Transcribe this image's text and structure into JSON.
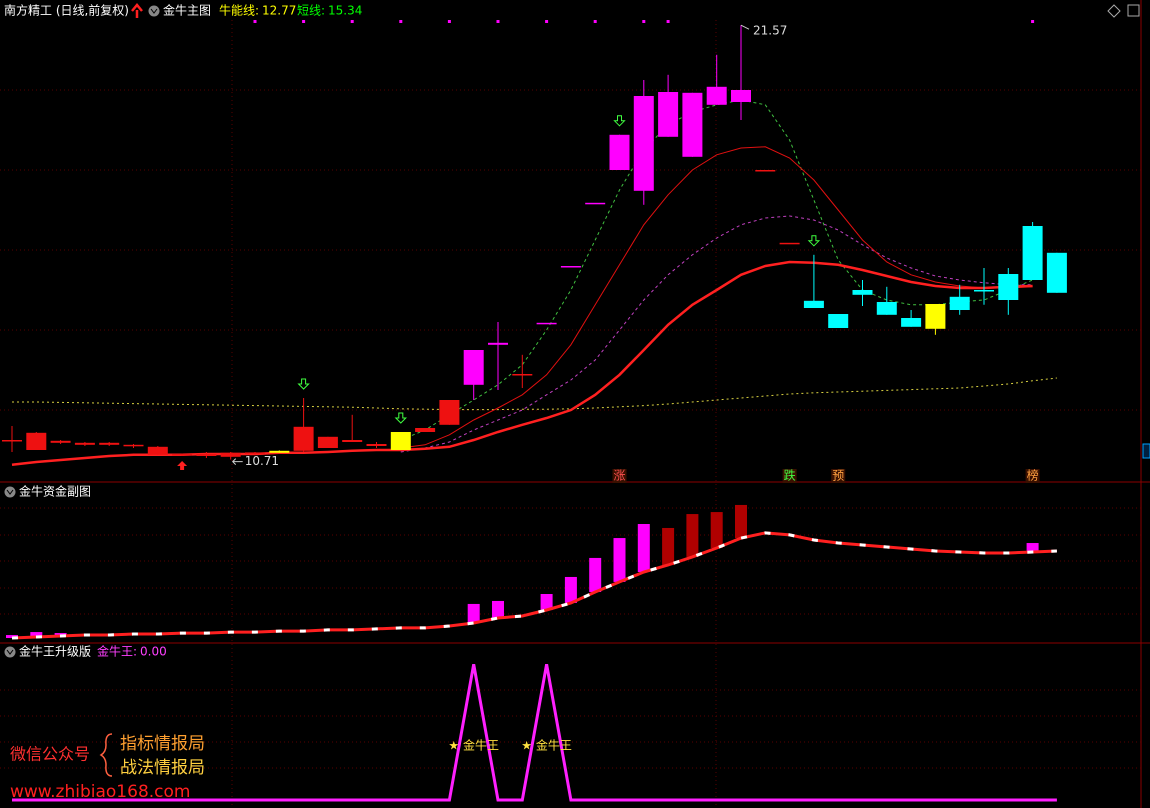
{
  "chart_data": [
    {
      "type": "candlestick",
      "title": "南方精工 (日线,前复权)",
      "subtitle": "金牛主图",
      "indicators": [
        {
          "name": "牛能线:",
          "value": 12.77,
          "color": "#ffff00"
        },
        {
          "name": "短线:",
          "value": 15.34,
          "color": "#00ff00"
        }
      ],
      "ylim": [
        10.2,
        22.2
      ],
      "candles": {
        "open": [
          11.2,
          10.95,
          11.13,
          11.08,
          11.08,
          11.05,
          10.83,
          10.82,
          10.8,
          10.78,
          10.86,
          10.88,
          10.93,
          11.0,
          11.15,
          11.05,
          10.95,
          11.4,
          11.58,
          12.58,
          13.58,
          12.85,
          14.13,
          15.55,
          17.13,
          17.95,
          17.43,
          18.78,
          18.28,
          19.58,
          19.65,
          17.95,
          16.13,
          14.68,
          14.35,
          14.95,
          14.65,
          14.25,
          13.98,
          14.78,
          14.95,
          15.35,
          16.55,
          15.88
        ],
        "high": [
          11.55,
          11.4,
          11.2,
          11.15,
          11.15,
          11.1,
          11.05,
          10.86,
          10.9,
          10.9,
          10.9,
          10.94,
          12.25,
          11.28,
          11.83,
          11.15,
          11.4,
          11.5,
          12.2,
          13.45,
          14.15,
          13.33,
          14.13,
          15.55,
          17.13,
          18.83,
          20.2,
          20.33,
          19.88,
          20.83,
          21.57,
          17.95,
          16.13,
          15.83,
          14.35,
          15.2,
          15.03,
          14.45,
          14.6,
          15.08,
          15.5,
          15.5,
          16.65,
          15.88
        ],
        "low": [
          10.9,
          10.95,
          11.1,
          11.05,
          11.05,
          11.0,
          10.83,
          10.8,
          10.75,
          10.71,
          10.84,
          10.88,
          10.9,
          11.0,
          11.15,
          11.0,
          10.95,
          11.4,
          11.58,
          12.2,
          12.45,
          12.5,
          14.13,
          15.55,
          17.13,
          17.95,
          17.08,
          18.78,
          18.28,
          19.58,
          19.2,
          17.95,
          16.13,
          14.5,
          14.0,
          14.55,
          14.33,
          14.03,
          13.83,
          14.33,
          14.58,
          14.33,
          15.2,
          14.88
        ],
        "close": [
          11.2,
          11.38,
          11.18,
          11.13,
          11.13,
          11.08,
          11.03,
          10.85,
          10.85,
          10.88,
          10.89,
          10.93,
          11.53,
          11.28,
          11.2,
          11.1,
          11.4,
          11.5,
          12.2,
          13.45,
          13.63,
          12.85,
          14.13,
          15.55,
          17.13,
          18.83,
          19.8,
          19.9,
          19.88,
          20.03,
          19.95,
          17.95,
          16.13,
          14.5,
          14.0,
          14.83,
          14.33,
          14.03,
          14.6,
          14.45,
          14.95,
          14.7,
          15.2,
          14.88
        ],
        "colors": [
          "#ee1111",
          "#ee1111",
          "#ee1111",
          "#ee1111",
          "#ee1111",
          "#ee1111",
          "#ee1111",
          "#ee1111",
          "#ee1111",
          "#ee1111",
          "#ee1111",
          "#ffff00",
          "#ee1111",
          "#ee1111",
          "#ee1111",
          "#ee1111",
          "#ffff00",
          "#ee1111",
          "#ee1111",
          "#ff00ff",
          "#ff00ff",
          "#ee1111",
          "#ff00ff",
          "#ff00ff",
          "#ff00ff",
          "#ff00ff",
          "#ff00ff",
          "#ff00ff",
          "#ff00ff",
          "#ff00ff",
          "#ff00ff",
          "#ee1111",
          "#ee1111",
          "#00ffff",
          "#00ffff",
          "#00ffff",
          "#00ffff",
          "#00ffff",
          "#ffff00",
          "#00ffff",
          "#00ffff",
          "#00ffff",
          "#00ffff",
          "#00ffff"
        ]
      },
      "series": [
        {
          "color": "#d8d040",
          "style": "dotted",
          "width": 1,
          "values": [
            12.15,
            12.15,
            12.14,
            12.13,
            12.12,
            12.11,
            12.1,
            12.09,
            12.08,
            12.07,
            12.06,
            12.05,
            12.04,
            12.03,
            12.02,
            12.0,
            11.98,
            11.97,
            11.96,
            11.96,
            11.96,
            11.97,
            11.97,
            11.98,
            12.0,
            12.03,
            12.06,
            12.1,
            12.15,
            12.2,
            12.25,
            12.3,
            12.35,
            12.38,
            12.4,
            12.42,
            12.44,
            12.46,
            12.48,
            12.5,
            12.55,
            12.6,
            12.68,
            12.75
          ]
        },
        {
          "color": "#40c040",
          "style": "dashed",
          "width": 1,
          "values": [
            null,
            null,
            null,
            null,
            null,
            null,
            null,
            null,
            null,
            null,
            null,
            null,
            null,
            null,
            null,
            null,
            11.2,
            11.45,
            11.83,
            12.2,
            12.58,
            13.08,
            13.95,
            14.95,
            16.2,
            17.45,
            18.45,
            19.08,
            19.4,
            19.58,
            19.7,
            19.58,
            18.7,
            17.2,
            15.7,
            14.95,
            14.7,
            14.58,
            14.58,
            14.65,
            14.7,
            14.95,
            15.2,
            null
          ]
        },
        {
          "color": "#c040c0",
          "style": "dashed",
          "width": 1,
          "values": [
            null,
            null,
            null,
            null,
            null,
            null,
            null,
            null,
            null,
            null,
            null,
            null,
            null,
            null,
            null,
            null,
            10.9,
            11.0,
            11.15,
            11.45,
            11.7,
            11.95,
            12.33,
            12.7,
            13.2,
            13.95,
            14.7,
            15.33,
            15.83,
            16.25,
            16.58,
            16.75,
            16.8,
            16.7,
            16.45,
            16.08,
            15.75,
            15.5,
            15.3,
            15.2,
            15.13,
            15.08,
            15.08,
            null
          ]
        },
        {
          "color": "#e01010",
          "style": "solid",
          "width": 1,
          "values": [
            null,
            null,
            null,
            null,
            null,
            null,
            null,
            null,
            null,
            null,
            null,
            null,
            null,
            null,
            null,
            null,
            11.0,
            11.08,
            11.33,
            11.7,
            12.0,
            12.33,
            12.83,
            13.58,
            14.58,
            15.58,
            16.58,
            17.33,
            17.95,
            18.33,
            18.5,
            18.53,
            18.25,
            17.7,
            16.95,
            16.2,
            15.65,
            15.33,
            15.15,
            15.05,
            15.0,
            15.0,
            15.03,
            null
          ]
        },
        {
          "color": "#ff2020",
          "style": "solid",
          "width": 2.5,
          "values": [
            10.58,
            10.65,
            10.7,
            10.75,
            10.8,
            10.83,
            10.83,
            10.83,
            10.85,
            10.85,
            10.85,
            10.88,
            10.88,
            10.9,
            10.93,
            10.95,
            10.95,
            10.98,
            11.03,
            11.2,
            11.4,
            11.58,
            11.75,
            11.95,
            12.33,
            12.83,
            13.45,
            14.08,
            14.58,
            14.95,
            15.33,
            15.55,
            15.65,
            15.63,
            15.58,
            15.45,
            15.3,
            15.15,
            15.05,
            15.0,
            15.0,
            15.03,
            15.05,
            null
          ]
        }
      ],
      "annotations": {
        "high": 21.57,
        "low": 10.71
      },
      "signals": [
        {
          "label": "涨",
          "color": "#ff5050"
        },
        {
          "label": "跌",
          "color": "#40ff40"
        },
        {
          "label": "预",
          "color": "#ffa040"
        },
        {
          "label": "榜",
          "color": "#ffa040"
        }
      ]
    },
    {
      "type": "bar",
      "title": "金牛资金副图",
      "ylim": [
        0,
        100
      ],
      "values": [
        4.9,
        7.0,
        6.3,
        null,
        null,
        null,
        null,
        null,
        null,
        null,
        null,
        null,
        null,
        null,
        null,
        null,
        null,
        null,
        null,
        26.8,
        28.9,
        null,
        33.8,
        45.8,
        59.2,
        73.2,
        83.1,
        80.3,
        90.1,
        91.5,
        96.5,
        null,
        null,
        null,
        null,
        null,
        null,
        null,
        null,
        null,
        null,
        null,
        69.7,
        null
      ],
      "colors": [
        "#ff00ff",
        "#ff00ff",
        "#ff00ff",
        null,
        null,
        null,
        null,
        null,
        null,
        null,
        null,
        null,
        null,
        null,
        null,
        null,
        null,
        null,
        null,
        "#ff00ff",
        "#ff00ff",
        null,
        "#ff00ff",
        "#ff00ff",
        "#ff00ff",
        "#ff00ff",
        "#ff00ff",
        "#b00000",
        "#b00000",
        "#b00000",
        "#b00000",
        null,
        null,
        null,
        null,
        null,
        null,
        null,
        null,
        null,
        null,
        null,
        "#ff00ff",
        null
      ],
      "line": {
        "color": "#ff2020",
        "values": [
          2.8,
          3.5,
          4.2,
          4.9,
          4.9,
          5.6,
          5.6,
          6.3,
          6.3,
          7.0,
          7.0,
          7.7,
          7.7,
          8.5,
          8.5,
          9.2,
          9.9,
          9.9,
          11.3,
          13.4,
          16.9,
          18.3,
          22.5,
          27.5,
          35.2,
          42.3,
          49.3,
          54.2,
          59.9,
          66.2,
          73.2,
          76.8,
          75.4,
          71.8,
          69.7,
          68.3,
          66.9,
          65.5,
          64.1,
          63.4,
          62.7,
          62.7,
          63.4,
          64.1
        ]
      }
    },
    {
      "type": "line",
      "title": "金牛王升级版",
      "indicators": [
        {
          "name": "金牛王:",
          "value": 0,
          "value_label": "0.00",
          "color": "#ff40ff"
        }
      ],
      "ylim": [
        0,
        1.15
      ],
      "color": "#ff20ff",
      "values": [
        0,
        0,
        0,
        0,
        0,
        0,
        0,
        0,
        0,
        0,
        0,
        0,
        0,
        0,
        0,
        0,
        0,
        0,
        0,
        1,
        0,
        0,
        1,
        0,
        0,
        0,
        0,
        0,
        0,
        0,
        0,
        0,
        0,
        0,
        0,
        0,
        0,
        0,
        0,
        0,
        0,
        0,
        0,
        0
      ],
      "annotations": [
        "★ 金牛王",
        "★ 金牛王"
      ]
    }
  ],
  "watermark": {
    "account": "微信公众号",
    "name1": "指标情报局",
    "name2": "战法情报局",
    "url": "www.zhibiao168.com"
  }
}
